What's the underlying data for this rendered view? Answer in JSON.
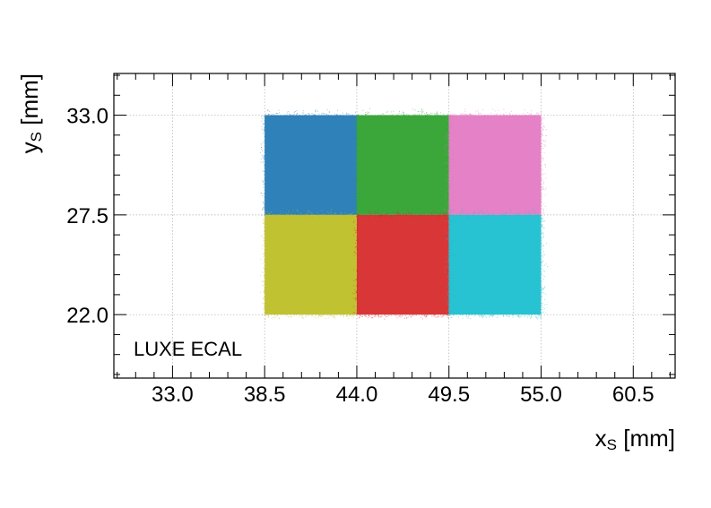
{
  "chart_data": {
    "type": "scatter",
    "title": "",
    "xlabel": "x",
    "xlabel_sub": "S",
    "xlabel_unit": " [mm]",
    "ylabel": "y",
    "ylabel_sub": "S",
    "ylabel_unit": " [mm]",
    "xlim": [
      29.5,
      63.0
    ],
    "ylim": [
      18.5,
      35.3
    ],
    "xticks": [
      33.0,
      38.5,
      44.0,
      49.5,
      55.0,
      60.5
    ],
    "xtick_labels": [
      "33.0",
      "38.5",
      "44.0",
      "49.5",
      "55.0",
      "60.5"
    ],
    "yticks": [
      22.0,
      27.5,
      33.0
    ],
    "ytick_labels": [
      "22.0",
      "27.5",
      "33.0"
    ],
    "grid": true,
    "annotation": "LUXE ECAL",
    "series": [
      {
        "color": "#1f77b4",
        "x_range": [
          38.5,
          44.0
        ],
        "y_range": [
          27.5,
          33.0
        ]
      },
      {
        "color": "#2ca02c",
        "x_range": [
          44.0,
          49.5
        ],
        "y_range": [
          27.5,
          33.0
        ]
      },
      {
        "color": "#e377c2",
        "x_range": [
          49.5,
          55.0
        ],
        "y_range": [
          27.5,
          33.0
        ]
      },
      {
        "color": "#bcbd22",
        "x_range": [
          38.5,
          44.0
        ],
        "y_range": [
          22.0,
          27.5
        ]
      },
      {
        "color": "#d62728",
        "x_range": [
          44.0,
          49.5
        ],
        "y_range": [
          22.0,
          27.5
        ]
      },
      {
        "color": "#17becf",
        "x_range": [
          49.5,
          55.0
        ],
        "y_range": [
          22.0,
          27.5
        ]
      }
    ]
  }
}
